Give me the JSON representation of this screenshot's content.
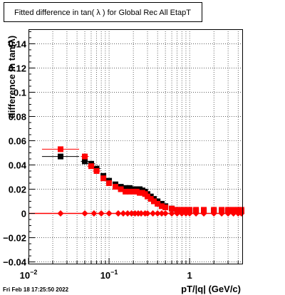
{
  "timestamp": "Fri Feb 18 17:25:50 2022",
  "chart_data": {
    "type": "scatter",
    "title": "Fitted difference in tan( λ ) for Global Rec All EtapT",
    "xlabel": "pT/|q| (GeV/c)",
    "ylabel": "difference in tan(λ)",
    "xscale": "log",
    "xlim": [
      0.01,
      4.5
    ],
    "ylim": [
      -0.042,
      0.152
    ],
    "grid": true,
    "x_tick_labels": [
      "10^-2",
      "10^-1",
      "1"
    ],
    "y_tick_labels": [
      "−0.04",
      "−0.02",
      "0",
      "0.02",
      "0.04",
      "0.06",
      "0.08",
      "0.1",
      "0.12",
      "0.14"
    ],
    "series": [
      {
        "color": "#000000",
        "marker": "square",
        "x": [
          0.025,
          0.05,
          0.06,
          0.07,
          0.085,
          0.1,
          0.12,
          0.14,
          0.16,
          0.18,
          0.2,
          0.22,
          0.24,
          0.26,
          0.28,
          0.3,
          0.33,
          0.36,
          0.4,
          0.45,
          0.5,
          0.6,
          0.7,
          0.8,
          0.9,
          1.0,
          1.2,
          1.5,
          2.0,
          2.5,
          3.0,
          3.5,
          4.0,
          4.4
        ],
        "y": [
          0.047,
          0.043,
          0.041,
          0.037,
          0.031,
          0.027,
          0.024,
          0.022,
          0.021,
          0.021,
          0.02,
          0.02,
          0.02,
          0.019,
          0.018,
          0.016,
          0.014,
          0.012,
          0.01,
          0.008,
          0.006,
          0.004,
          0.003,
          0.002,
          0.002,
          0.002,
          0.002,
          0.002,
          0.002,
          0.002,
          0.002,
          0.002,
          0.002,
          0.002
        ]
      },
      {
        "color": "#ff0000",
        "marker": "square",
        "x": [
          0.025,
          0.05,
          0.06,
          0.07,
          0.085,
          0.1,
          0.12,
          0.14,
          0.16,
          0.18,
          0.2,
          0.22,
          0.24,
          0.26,
          0.28,
          0.3,
          0.33,
          0.36,
          0.4,
          0.45,
          0.5,
          0.6,
          0.7,
          0.8,
          0.9,
          1.0,
          1.2,
          1.5,
          2.0,
          2.5,
          3.0,
          3.5,
          4.0,
          4.4
        ],
        "y": [
          0.053,
          0.047,
          0.039,
          0.035,
          0.029,
          0.025,
          0.022,
          0.02,
          0.018,
          0.018,
          0.018,
          0.018,
          0.017,
          0.017,
          0.016,
          0.014,
          0.012,
          0.01,
          0.008,
          0.006,
          0.005,
          0.004,
          0.003,
          0.003,
          0.003,
          0.003,
          0.003,
          0.003,
          0.003,
          0.003,
          0.003,
          0.003,
          0.003,
          0.003
        ]
      },
      {
        "color": "#ff0000",
        "marker": "diamond",
        "x": [
          0.025,
          0.05,
          0.065,
          0.08,
          0.1,
          0.13,
          0.15,
          0.17,
          0.19,
          0.21,
          0.23,
          0.25,
          0.28,
          0.3,
          0.35,
          0.4,
          0.45,
          0.5,
          0.6,
          0.7,
          0.8,
          0.9,
          1.0,
          1.2,
          1.5,
          2.0,
          2.5,
          3.0,
          3.5,
          4.0,
          4.4
        ],
        "y": [
          0,
          0,
          0,
          0,
          0,
          0,
          0,
          0,
          0,
          0,
          0,
          0,
          0,
          0,
          0,
          0,
          0,
          0,
          0,
          0,
          0,
          0,
          0,
          0,
          0,
          0,
          0,
          0,
          0,
          0,
          0
        ]
      }
    ]
  }
}
